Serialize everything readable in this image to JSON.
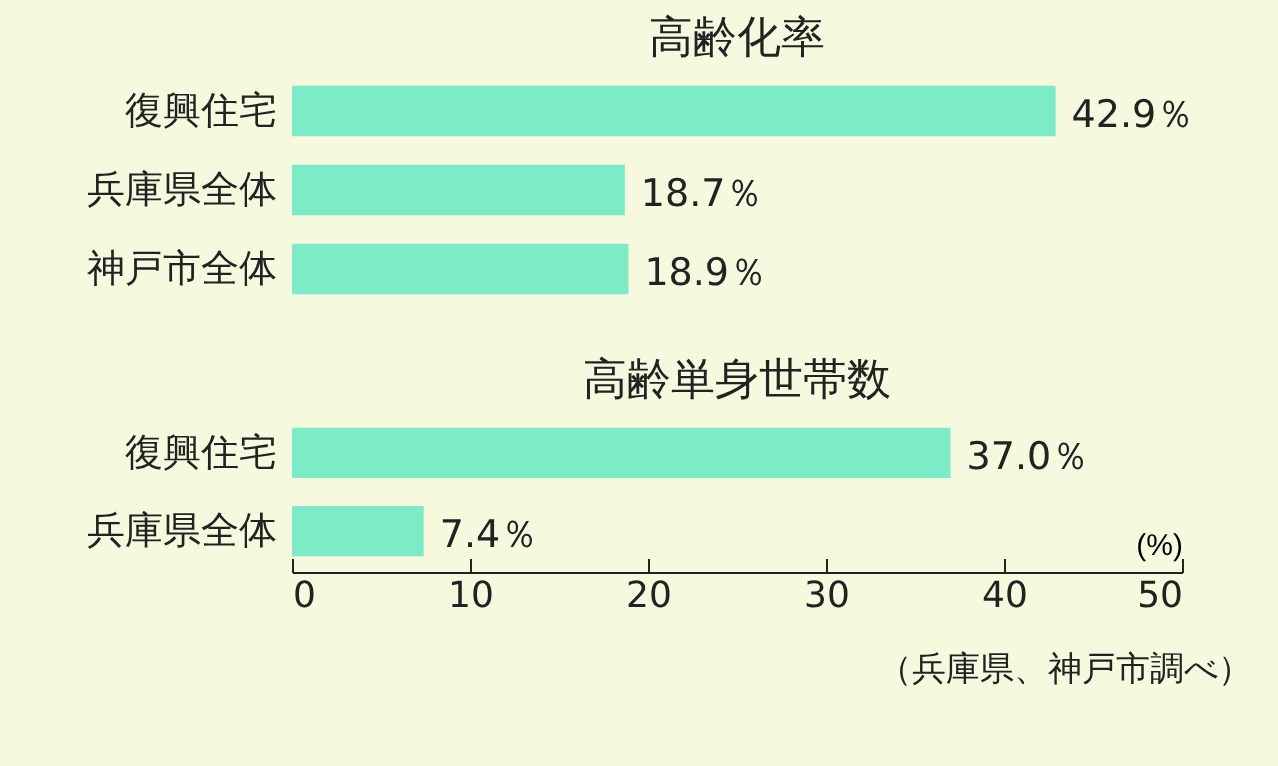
{
  "chart_data": [
    {
      "type": "bar",
      "orientation": "horizontal",
      "title": "高齢化率",
      "categories": [
        "復興住宅",
        "兵庫県全体",
        "神戸市全体"
      ],
      "values": [
        42.9,
        18.7,
        18.9
      ],
      "value_labels": [
        "42.9％",
        "18.7％",
        "18.9％"
      ],
      "color": "#7cecc6",
      "xlim": [
        0,
        50
      ],
      "tick_labels": "y"
    },
    {
      "type": "bar",
      "orientation": "horizontal",
      "title": "高齢単身世帯数",
      "categories": [
        "復興住宅",
        "兵庫県全体"
      ],
      "values": [
        37.0,
        7.4
      ],
      "value_labels": [
        "37.0％",
        "7.4％"
      ],
      "color": "#7cecc6",
      "xlim": [
        0,
        50
      ],
      "xticks": [
        0,
        10,
        20,
        30,
        40,
        50
      ],
      "xlabel": "(%)",
      "annotations": [
        "（兵庫県、神戸市調べ）"
      ]
    }
  ]
}
